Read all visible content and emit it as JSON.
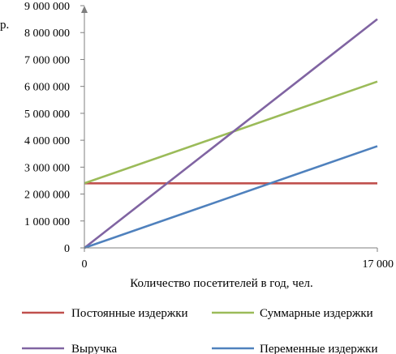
{
  "chart_data": {
    "type": "line",
    "ylabel": "р.",
    "xlabel": "Количество посетителей в год, чел.",
    "xlim": [
      0,
      17000
    ],
    "ylim": [
      0,
      9000000
    ],
    "x_ticks": [
      {
        "value": 0,
        "label": "0"
      },
      {
        "value": 17000,
        "label": "17 000"
      }
    ],
    "y_ticks": [
      {
        "value": 0,
        "label": "0"
      },
      {
        "value": 1000000,
        "label": "1 000 000"
      },
      {
        "value": 2000000,
        "label": "2 000 000"
      },
      {
        "value": 3000000,
        "label": "3 000 000"
      },
      {
        "value": 4000000,
        "label": "4 000 000"
      },
      {
        "value": 5000000,
        "label": "5 000 000"
      },
      {
        "value": 6000000,
        "label": "6 000 000"
      },
      {
        "value": 7000000,
        "label": "7 000 000"
      },
      {
        "value": 8000000,
        "label": "8 000 000"
      },
      {
        "value": 9000000,
        "label": "9 000 000"
      }
    ],
    "grid": false,
    "legend_position": "bottom",
    "x": [
      0,
      17000
    ],
    "series": [
      {
        "name": "Постоянные издержки",
        "color": "#C0504D",
        "values": [
          2400000,
          2400000
        ]
      },
      {
        "name": "Суммарные издержки",
        "color": "#9BBB59",
        "values": [
          2400000,
          6180000
        ]
      },
      {
        "name": "Выручка",
        "color": "#8064A2",
        "values": [
          0,
          8500000
        ]
      },
      {
        "name": "Переменные издержки",
        "color": "#4F81BD",
        "values": [
          0,
          3780000
        ]
      }
    ]
  }
}
